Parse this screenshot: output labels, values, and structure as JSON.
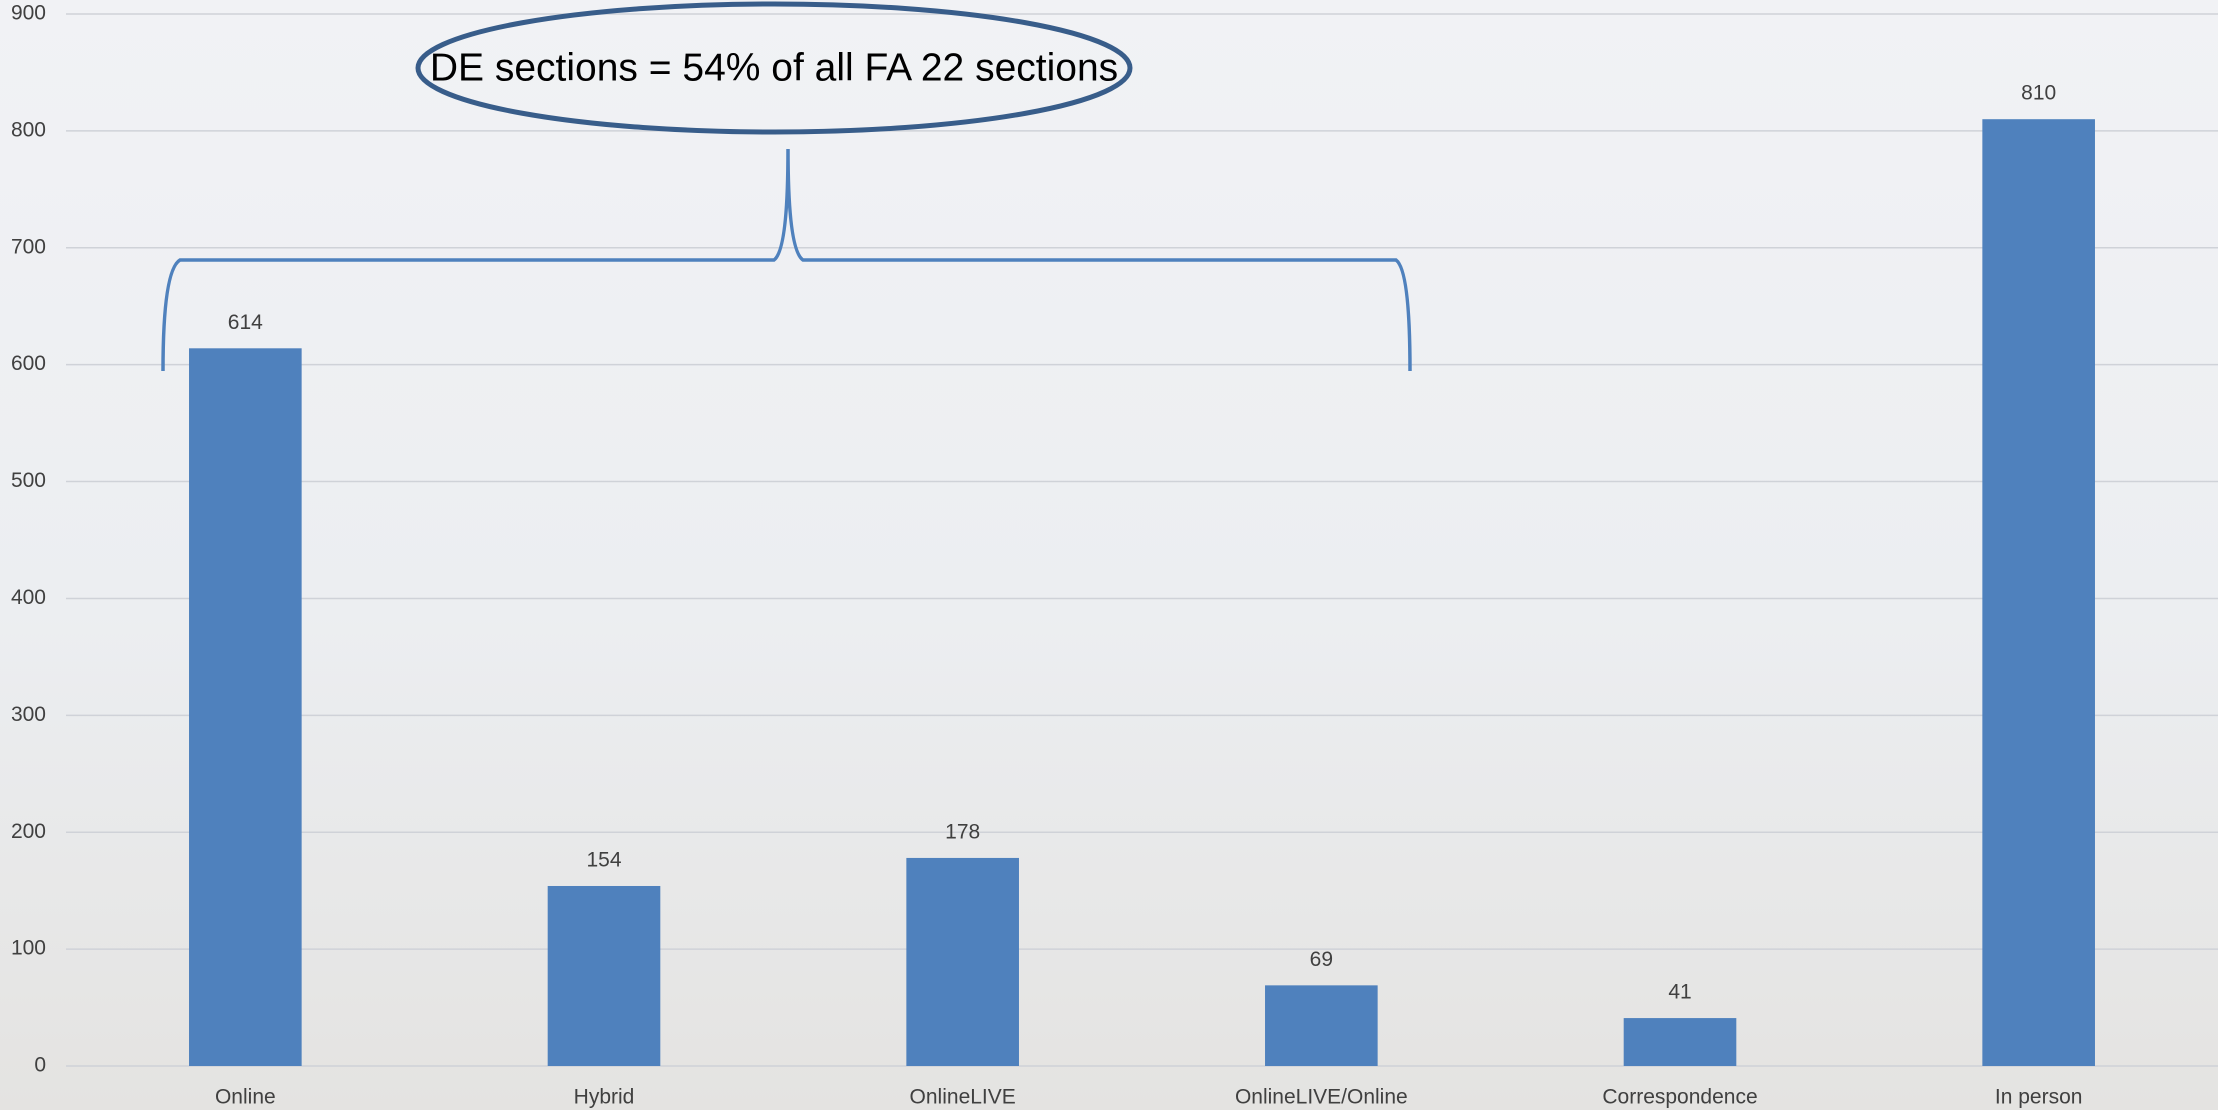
{
  "chart_data": {
    "type": "bar",
    "categories": [
      "Online",
      "Hybrid",
      "OnlineLIVE",
      "OnlineLIVE/Online",
      "Correspondence",
      "In person"
    ],
    "values": [
      614,
      154,
      178,
      69,
      41,
      810
    ],
    "color": "#4f81bd",
    "ylim": [
      0,
      900
    ],
    "yticks": [
      0,
      100,
      200,
      300,
      400,
      500,
      600,
      700,
      800,
      900
    ],
    "grid": true,
    "annotation": "DE sections = 54% of all FA 22 sections"
  }
}
